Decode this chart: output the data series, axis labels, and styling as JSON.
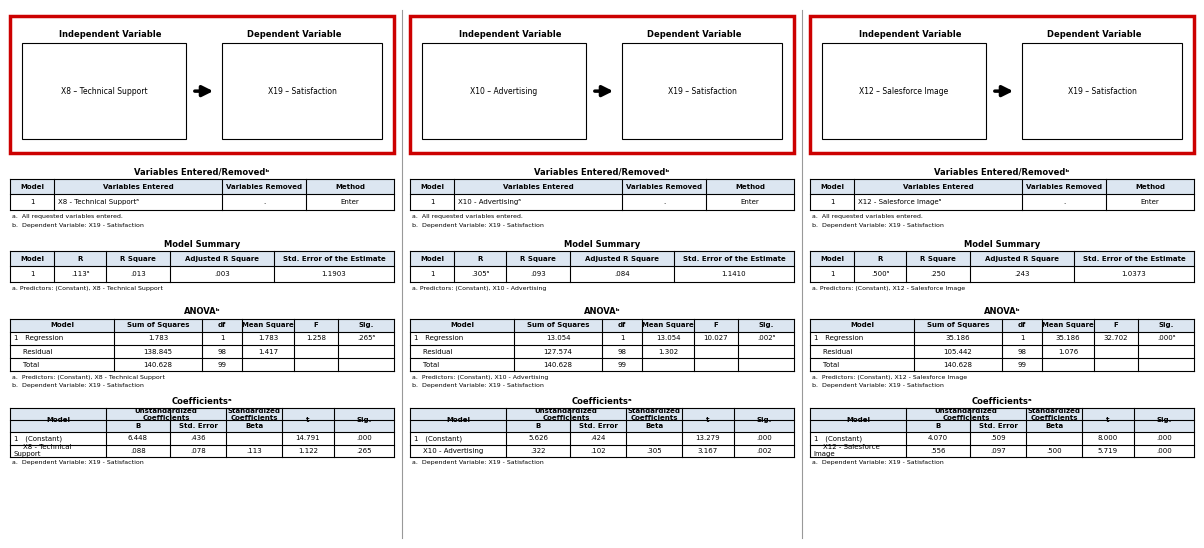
{
  "panels": [
    {
      "ind_var": "X8 – Technical Support",
      "dep_var": "X19 – Satisfaction",
      "var_entered": "X8 - Technical Supportᵃ",
      "model_R": ".113ᵃ",
      "model_Rsq": ".013",
      "model_adjRsq": ".003",
      "model_se": "1.1903",
      "predictor_note": "a. Predictors: (Constant), X8 - Technical Support",
      "anova_reg_ss": "1.783",
      "anova_reg_df": "1",
      "anova_reg_ms": "1.783",
      "anova_reg_F": "1.258",
      "anova_reg_sig": ".265ᵃ",
      "anova_res_ss": "138.845",
      "anova_res_df": "98",
      "anova_res_ms": "1.417",
      "anova_tot_ss": "140.628",
      "anova_tot_df": "99",
      "coef_const_B": "6.448",
      "coef_const_se": ".436",
      "coef_const_t": "14.791",
      "coef_const_sig": ".000",
      "coef_var_name": "X8 - Technical\nSupport",
      "coef_var_B": ".088",
      "coef_var_se": ".078",
      "coef_var_beta": ".113",
      "coef_var_t": "1.122",
      "coef_var_sig": ".265"
    },
    {
      "ind_var": "X10 – Advertising",
      "dep_var": "X19 – Satisfaction",
      "var_entered": "X10 - Advertisingᵃ",
      "model_R": ".305ᵃ",
      "model_Rsq": ".093",
      "model_adjRsq": ".084",
      "model_se": "1.1410",
      "predictor_note": "a. Predictors: (Constant), X10 - Advertising",
      "anova_reg_ss": "13.054",
      "anova_reg_df": "1",
      "anova_reg_ms": "13.054",
      "anova_reg_F": "10.027",
      "anova_reg_sig": ".002ᵃ",
      "anova_res_ss": "127.574",
      "anova_res_df": "98",
      "anova_res_ms": "1.302",
      "anova_tot_ss": "140.628",
      "anova_tot_df": "99",
      "coef_const_B": "5.626",
      "coef_const_se": ".424",
      "coef_const_t": "13.279",
      "coef_const_sig": ".000",
      "coef_var_name": "X10 - Advertising",
      "coef_var_B": ".322",
      "coef_var_se": ".102",
      "coef_var_beta": ".305",
      "coef_var_t": "3.167",
      "coef_var_sig": ".002"
    },
    {
      "ind_var": "X12 – Salesforce Image",
      "dep_var": "X19 – Satisfaction",
      "var_entered": "X12 - Salesforce Imageᵃ",
      "model_R": ".500ᵃ",
      "model_Rsq": ".250",
      "model_adjRsq": ".243",
      "model_se": "1.0373",
      "predictor_note": "a. Predictors: (Constant), X12 - Salesforce Image",
      "anova_reg_ss": "35.186",
      "anova_reg_df": "1",
      "anova_reg_ms": "35.186",
      "anova_reg_F": "32.702",
      "anova_reg_sig": ".000ᵃ",
      "anova_res_ss": "105.442",
      "anova_res_df": "98",
      "anova_res_ms": "1.076",
      "anova_tot_ss": "140.628",
      "anova_tot_df": "99",
      "coef_const_B": "4.070",
      "coef_const_se": ".509",
      "coef_const_t": "8.000",
      "coef_const_sig": ".000",
      "coef_var_name": "X12 - Salesforce\nImage",
      "coef_var_B": ".556",
      "coef_var_se": ".097",
      "coef_var_beta": ".500",
      "coef_var_t": "5.719",
      "coef_var_sig": ".000"
    }
  ],
  "bg_color": "#ffffff",
  "table_header_bg": "#dce6f1",
  "red_border": "#cc0000"
}
